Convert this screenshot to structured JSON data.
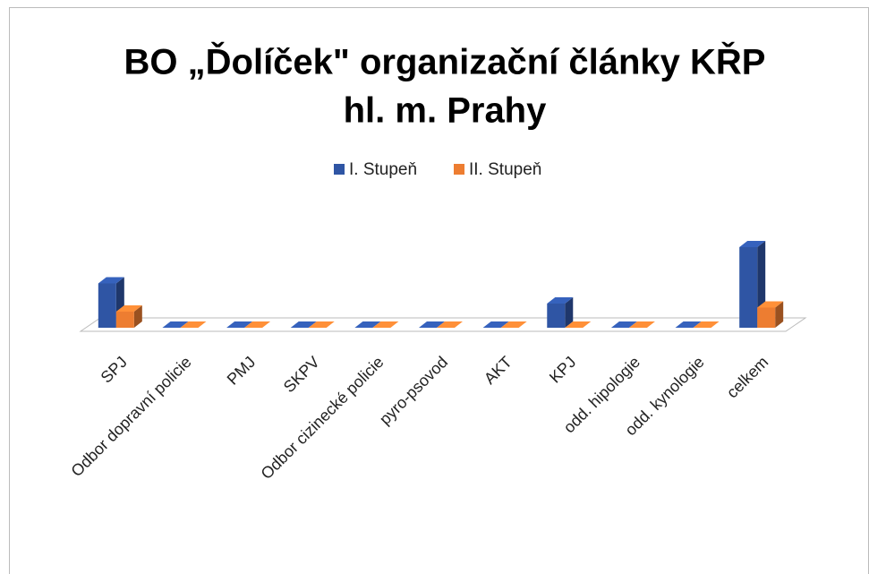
{
  "chart_data": {
    "type": "bar3d",
    "title": "BO „Ďolíček\" organizační články KŘP",
    "subtitle": "hl. m. Prahy",
    "categories": [
      "SPJ",
      "Odbor dopravní policie",
      "PMJ",
      "SKPV",
      "Odbor cizinecké policie",
      "pyro-psovod",
      "AKT",
      "KPJ",
      "odd. hipologie",
      "odd. kynologie",
      "celkem"
    ],
    "series": [
      {
        "name": "I. Stupeň",
        "color": "#2f55a4",
        "values": [
          11,
          0,
          0,
          0,
          0,
          0,
          0,
          6,
          0,
          0,
          20
        ]
      },
      {
        "name": "II. Stupeň",
        "color": "#ed7d31",
        "values": [
          4,
          0,
          0,
          0,
          0,
          0,
          0,
          0,
          0,
          0,
          5
        ]
      }
    ],
    "ylim": [
      0,
      22
    ],
    "legend": "top"
  }
}
